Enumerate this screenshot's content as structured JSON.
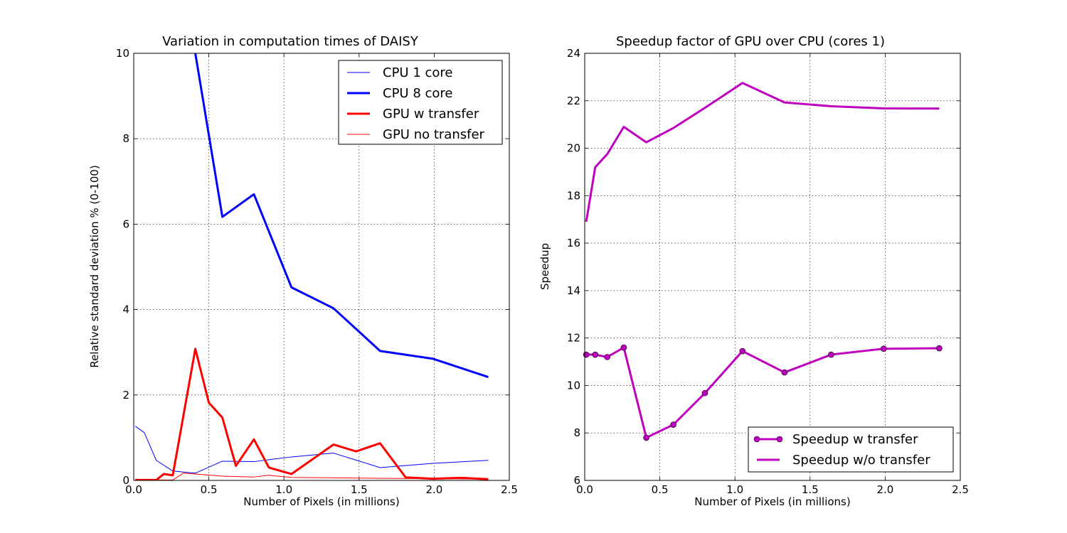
{
  "chart_data": [
    {
      "type": "line",
      "title": "Variation in computation times of DAISY",
      "xlabel": "Number of Pixels (in millions)",
      "ylabel": "Relative standard deviation % (0-100)",
      "xlim": [
        0,
        2.5
      ],
      "ylim": [
        0,
        10
      ],
      "xticks": [
        "0.0",
        "0.5",
        "1.0",
        "1.5",
        "2.0",
        "2.5"
      ],
      "yticks": [
        "0",
        "2",
        "4",
        "6",
        "8",
        "10"
      ],
      "grid": true,
      "legend_placement": "top-right",
      "series": [
        {
          "name": "CPU 1 core",
          "color": "#0000ff",
          "style": "thin",
          "x": [
            0.01,
            0.07,
            0.15,
            0.26,
            0.41,
            0.59,
            0.8,
            1.05,
            1.33,
            1.64,
            1.99,
            2.36
          ],
          "y": [
            1.27,
            1.12,
            0.47,
            0.22,
            0.17,
            0.45,
            0.44,
            0.55,
            0.64,
            0.3,
            0.4,
            0.47
          ]
        },
        {
          "name": "CPU 8 core",
          "color": "#0000ff",
          "style": "thick",
          "x": [
            0.41,
            0.59,
            0.8,
            1.05,
            1.33,
            1.64,
            1.99,
            2.36
          ],
          "y": [
            10.0,
            6.17,
            6.7,
            4.52,
            4.03,
            3.03,
            2.85,
            2.42
          ]
        },
        {
          "name": "GPU w transfer",
          "color": "#ff0000",
          "style": "thick",
          "x": [
            0.01,
            0.07,
            0.15,
            0.2,
            0.26,
            0.41,
            0.5,
            0.59,
            0.68,
            0.8,
            0.9,
            1.05,
            1.33,
            1.48,
            1.64,
            1.81,
            1.99,
            2.18,
            2.36
          ],
          "y": [
            0.01,
            0.01,
            0.01,
            0.15,
            0.12,
            3.08,
            1.82,
            1.47,
            0.34,
            0.96,
            0.3,
            0.15,
            0.84,
            0.68,
            0.87,
            0.07,
            0.04,
            0.06,
            0.03
          ]
        },
        {
          "name": "GPU no transfer",
          "color": "#ff0000",
          "style": "thin",
          "x": [
            0.01,
            0.07,
            0.15,
            0.26,
            0.33,
            0.41,
            0.59,
            0.8,
            0.9,
            1.05,
            1.33,
            1.64,
            1.99,
            2.36
          ],
          "y": [
            0.01,
            0.01,
            0.01,
            0.01,
            0.17,
            0.15,
            0.1,
            0.08,
            0.12,
            0.07,
            0.06,
            0.05,
            0.04,
            0.03
          ]
        }
      ]
    },
    {
      "type": "line",
      "title": "Speedup factor of GPU over CPU (cores 1)",
      "xlabel": "Number of Pixels (in millions)",
      "ylabel": "Speedup",
      "xlim": [
        0,
        2.5
      ],
      "ylim": [
        6,
        24
      ],
      "xticks": [
        "0.0",
        "0.5",
        "1.0",
        "1.5",
        "2.0",
        "2.5"
      ],
      "yticks": [
        "6",
        "8",
        "10",
        "12",
        "14",
        "16",
        "18",
        "20",
        "22",
        "24"
      ],
      "grid": true,
      "legend_placement": "bottom-right",
      "series": [
        {
          "name": "Speedup w transfer",
          "color": "#bf00bf",
          "style": "thick",
          "marker": "circle",
          "x": [
            0.01,
            0.07,
            0.15,
            0.26,
            0.41,
            0.59,
            0.8,
            1.05,
            1.33,
            1.64,
            1.99,
            2.36
          ],
          "y": [
            11.3,
            11.3,
            11.2,
            11.6,
            7.8,
            8.35,
            9.68,
            11.45,
            10.55,
            11.3,
            11.55,
            11.57
          ]
        },
        {
          "name": "Speedup w/o transfer",
          "color": "#bf00bf",
          "style": "thick",
          "x": [
            0.01,
            0.07,
            0.15,
            0.26,
            0.41,
            0.59,
            0.8,
            1.05,
            1.33,
            1.64,
            1.99,
            2.36
          ],
          "y": [
            16.9,
            19.2,
            19.75,
            20.9,
            20.25,
            20.85,
            21.7,
            22.75,
            21.93,
            21.77,
            21.68,
            21.67
          ]
        }
      ]
    }
  ]
}
